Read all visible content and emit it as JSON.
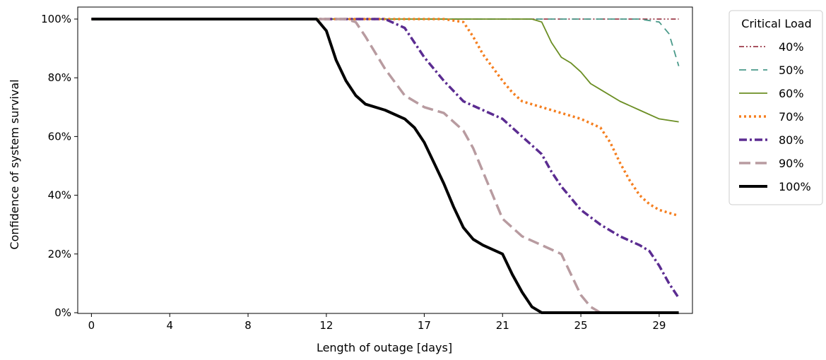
{
  "chart_data": {
    "type": "line",
    "title": "",
    "xlabel": "Length of outage [days]",
    "ylabel": "Confidence of system survival",
    "xlim": [
      -0.7,
      30.7
    ],
    "ylim": [
      0,
      100
    ],
    "x_ticks": [
      0,
      4,
      8,
      12,
      17,
      21,
      25,
      29
    ],
    "x_tick_labels": [
      "0",
      "4",
      "8",
      "12",
      "17",
      "21",
      "25",
      "29"
    ],
    "y_ticks": [
      0,
      20,
      40,
      60,
      80,
      100
    ],
    "y_tick_labels": [
      "0%",
      "20%",
      "40%",
      "60%",
      "80%",
      "100%"
    ],
    "grid": false,
    "legend": {
      "title": "Critical Load",
      "placement": "outside-top-right"
    },
    "series": [
      {
        "name": "40%",
        "color": "#8b1a2b",
        "dash": "dash-dot-dot",
        "width": 1.5,
        "x": [
          0,
          22,
          23,
          30
        ],
        "y": [
          100,
          100,
          100,
          100
        ]
      },
      {
        "name": "50%",
        "color": "#4a9a8a",
        "dash": "dashed",
        "width": 1.8,
        "x": [
          0,
          25,
          26,
          27,
          28,
          29,
          29.5,
          30
        ],
        "y": [
          100,
          100,
          100,
          100,
          100,
          99,
          95,
          84
        ]
      },
      {
        "name": "60%",
        "color": "#6b8e23",
        "dash": "solid",
        "width": 1.8,
        "x": [
          0,
          22.5,
          23,
          23.5,
          24,
          24.5,
          25,
          25.5,
          26,
          27,
          28,
          29,
          30
        ],
        "y": [
          100,
          100,
          99,
          92,
          87,
          85,
          82,
          78,
          76,
          72,
          69,
          66,
          65
        ]
      },
      {
        "name": "70%",
        "color": "#f57f20",
        "dash": "dotted",
        "width": 3.5,
        "x": [
          0,
          18,
          19,
          19.5,
          20,
          21,
          21.5,
          22,
          23,
          24,
          25,
          26,
          26.5,
          27,
          27.5,
          28,
          28.5,
          29,
          29.5,
          30
        ],
        "y": [
          100,
          100,
          99,
          94,
          88,
          79,
          75,
          72,
          70,
          68,
          66,
          63,
          58,
          51,
          45,
          40,
          37,
          35,
          34,
          33
        ]
      },
      {
        "name": "80%",
        "color": "#5b2c91",
        "dash": "dash-dot",
        "width": 3.5,
        "x": [
          0,
          15,
          16,
          17,
          18,
          19,
          20,
          21,
          22,
          23,
          23.5,
          24,
          25,
          26,
          27,
          28,
          28.5,
          29,
          29.5,
          30
        ],
        "y": [
          100,
          100,
          97,
          87,
          79,
          72,
          69,
          66,
          60,
          54,
          48,
          43,
          35,
          30,
          26,
          23,
          21,
          16,
          10,
          5
        ]
      },
      {
        "name": "90%",
        "color": "#b89ba0",
        "dash": "long-dash",
        "width": 3.5,
        "x": [
          0,
          13,
          13.5,
          14,
          15,
          16,
          17,
          18,
          19,
          19.5,
          20,
          20.5,
          21,
          22,
          23,
          24,
          24.5,
          25,
          25.5,
          26
        ],
        "y": [
          100,
          100,
          99,
          94,
          83,
          74,
          70,
          68,
          62,
          56,
          48,
          40,
          32,
          26,
          23,
          20,
          13,
          6,
          2,
          0
        ]
      },
      {
        "name": "100%",
        "color": "#000000",
        "dash": "solid",
        "width": 4,
        "x": [
          0,
          11.5,
          12,
          12.5,
          13,
          13.5,
          14,
          15,
          16,
          16.5,
          17,
          17.5,
          18,
          18.5,
          19,
          19.5,
          20,
          21,
          21.5,
          22,
          22.5,
          23,
          24,
          30
        ],
        "y": [
          100,
          100,
          96,
          86,
          79,
          74,
          71,
          69,
          66,
          63,
          58,
          51,
          44,
          36,
          29,
          25,
          23,
          20,
          13,
          7,
          2,
          0,
          0,
          0
        ]
      }
    ]
  }
}
